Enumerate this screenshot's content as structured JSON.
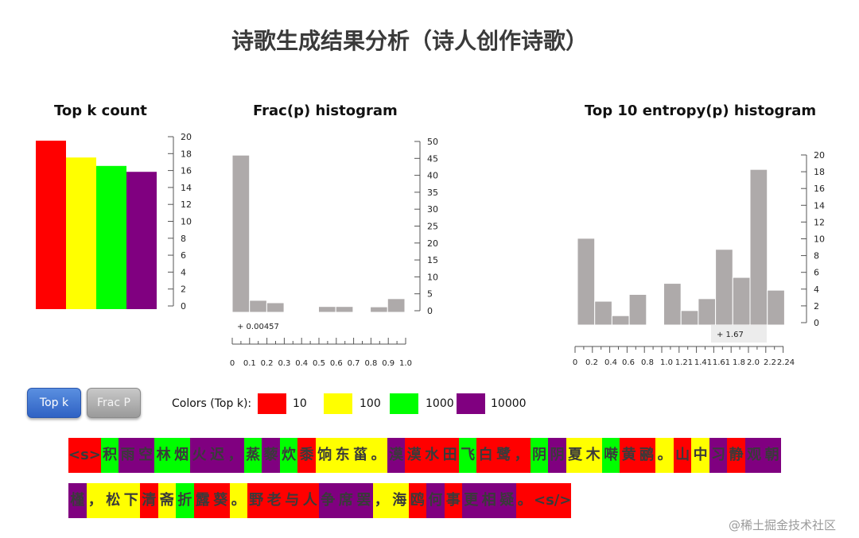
{
  "page": {
    "title": "诗歌生成结果分析（诗人创作诗歌）"
  },
  "colors": {
    "10": "#ff0000",
    "100": "#ffff00",
    "1000": "#00ff00",
    "10000": "#800080",
    "histogram_bar": "#aeaaaa",
    "button_top_k": "#3a6fd1",
    "button_frac_p": "#b0b0b0"
  },
  "chart_data": [
    {
      "id": "topk",
      "type": "bar",
      "title": "Top k count",
      "categories": [
        "10",
        "100",
        "1000",
        "10000"
      ],
      "values": [
        20,
        18,
        17,
        16.3
      ],
      "colors": [
        "#ff0000",
        "#ffff00",
        "#00ff00",
        "#800080"
      ],
      "ylim": [
        0,
        20
      ],
      "yticks": [
        "0",
        "2",
        "4",
        "6",
        "8",
        "10",
        "12",
        "14",
        "16",
        "18",
        "20"
      ],
      "grid": false
    },
    {
      "id": "frac",
      "type": "bar",
      "title": "Frac(p)   histogram",
      "bin_edges": [
        0,
        0.1,
        0.2,
        0.3,
        0.4,
        0.5,
        0.6,
        0.7,
        0.8,
        0.9,
        1.0
      ],
      "values": [
        46,
        3.5,
        2.8,
        0,
        0,
        1.7,
        1.7,
        0,
        1.6,
        4
      ],
      "xticks": [
        "0",
        "0.1",
        "0.2",
        "0.3",
        "0.4",
        "0.5",
        "0.6",
        "0.7",
        "0.8",
        "0.9",
        "1.0"
      ],
      "ylim": [
        0,
        50
      ],
      "yticks": [
        "0",
        "5",
        "10",
        "15",
        "20",
        "25",
        "30",
        "35",
        "40",
        "45",
        "50"
      ],
      "marker": "+ 0.00457",
      "grid": false
    },
    {
      "id": "entropy",
      "type": "bar",
      "title": "Top 10 entropy(p)   histogram",
      "xticks": [
        "0",
        "0.2",
        "0.4",
        "0.6",
        "0.8",
        "1.0",
        "1.21",
        "1.41",
        "1.61",
        "1.8",
        "2.0",
        "2.2",
        "2.24"
      ],
      "values": [
        10.2,
        2.8,
        1.1,
        3.6,
        0,
        4.9,
        1.7,
        3.1,
        8.9,
        5.6,
        18.3,
        4.1
      ],
      "ylim": [
        0,
        20
      ],
      "yticks": [
        "0",
        "2",
        "4",
        "6",
        "8",
        "10",
        "12",
        "14",
        "16",
        "18",
        "20"
      ],
      "marker": "+ 1.67",
      "grid": false
    }
  ],
  "buttons": {
    "top_k": "Top k",
    "frac_p": "Frac P"
  },
  "legend": {
    "title": "Colors (Top k):",
    "items": [
      {
        "label": "10",
        "color": "#ff0000"
      },
      {
        "label": "100",
        "color": "#ffff00"
      },
      {
        "label": "1000",
        "color": "#00ff00"
      },
      {
        "label": "10000",
        "color": "#800080"
      }
    ]
  },
  "poem": {
    "lines": [
      [
        {
          "text": "<s>",
          "bucket": "10"
        },
        {
          "text": "积",
          "bucket": "1000"
        },
        {
          "text": "雨",
          "bucket": "10000"
        },
        {
          "text": "空",
          "bucket": "10000"
        },
        {
          "text": "林",
          "bucket": "1000"
        },
        {
          "text": "烟",
          "bucket": "1000"
        },
        {
          "text": "火",
          "bucket": "10000"
        },
        {
          "text": "迟",
          "bucket": "10000"
        },
        {
          "text": "，",
          "bucket": "10000"
        },
        {
          "text": "蒸",
          "bucket": "1000"
        },
        {
          "text": "藜",
          "bucket": "10000"
        },
        {
          "text": "炊",
          "bucket": "1000"
        },
        {
          "text": "黍",
          "bucket": "10"
        },
        {
          "text": "饷",
          "bucket": "100"
        },
        {
          "text": "东",
          "bucket": "100"
        },
        {
          "text": "菑",
          "bucket": "100"
        },
        {
          "text": "。",
          "bucket": "100"
        },
        {
          "text": "漠",
          "bucket": "10000"
        },
        {
          "text": "漠",
          "bucket": "10"
        },
        {
          "text": "水",
          "bucket": "10"
        },
        {
          "text": "田",
          "bucket": "10"
        },
        {
          "text": "飞",
          "bucket": "1000"
        },
        {
          "text": "白",
          "bucket": "10"
        },
        {
          "text": "鹭",
          "bucket": "10"
        },
        {
          "text": "，",
          "bucket": "10"
        },
        {
          "text": "阴",
          "bucket": "1000"
        },
        {
          "text": "阴",
          "bucket": "10000"
        },
        {
          "text": "夏",
          "bucket": "100"
        },
        {
          "text": "木",
          "bucket": "100"
        },
        {
          "text": "啭",
          "bucket": "1000"
        },
        {
          "text": "黄",
          "bucket": "10"
        },
        {
          "text": "鹂",
          "bucket": "10"
        },
        {
          "text": "。",
          "bucket": "100"
        },
        {
          "text": "山",
          "bucket": "10"
        },
        {
          "text": "中",
          "bucket": "100"
        },
        {
          "text": "习",
          "bucket": "10000"
        },
        {
          "text": "静",
          "bucket": "10"
        },
        {
          "text": "观",
          "bucket": "10000"
        },
        {
          "text": "朝",
          "bucket": "10000"
        }
      ],
      [
        {
          "text": "槿",
          "bucket": "10000"
        },
        {
          "text": "，",
          "bucket": "100"
        },
        {
          "text": "松",
          "bucket": "100"
        },
        {
          "text": "下",
          "bucket": "100"
        },
        {
          "text": "清",
          "bucket": "10"
        },
        {
          "text": "斋",
          "bucket": "100"
        },
        {
          "text": "折",
          "bucket": "1000"
        },
        {
          "text": "露",
          "bucket": "10"
        },
        {
          "text": "葵",
          "bucket": "10"
        },
        {
          "text": "。",
          "bucket": "100"
        },
        {
          "text": "野",
          "bucket": "10"
        },
        {
          "text": "老",
          "bucket": "10"
        },
        {
          "text": "与",
          "bucket": "10"
        },
        {
          "text": "人",
          "bucket": "10"
        },
        {
          "text": "争",
          "bucket": "10000"
        },
        {
          "text": "席",
          "bucket": "10000"
        },
        {
          "text": "罢",
          "bucket": "10000"
        },
        {
          "text": "，",
          "bucket": "100"
        },
        {
          "text": "海",
          "bucket": "100"
        },
        {
          "text": "鸥",
          "bucket": "10"
        },
        {
          "text": "何",
          "bucket": "10000"
        },
        {
          "text": "事",
          "bucket": "10"
        },
        {
          "text": "更",
          "bucket": "10000"
        },
        {
          "text": "相",
          "bucket": "10000"
        },
        {
          "text": "疑",
          "bucket": "10000"
        },
        {
          "text": "。",
          "bucket": "10"
        },
        {
          "text": "<s/>",
          "bucket": "10"
        }
      ]
    ]
  },
  "watermark": "@稀土掘金技术社区"
}
